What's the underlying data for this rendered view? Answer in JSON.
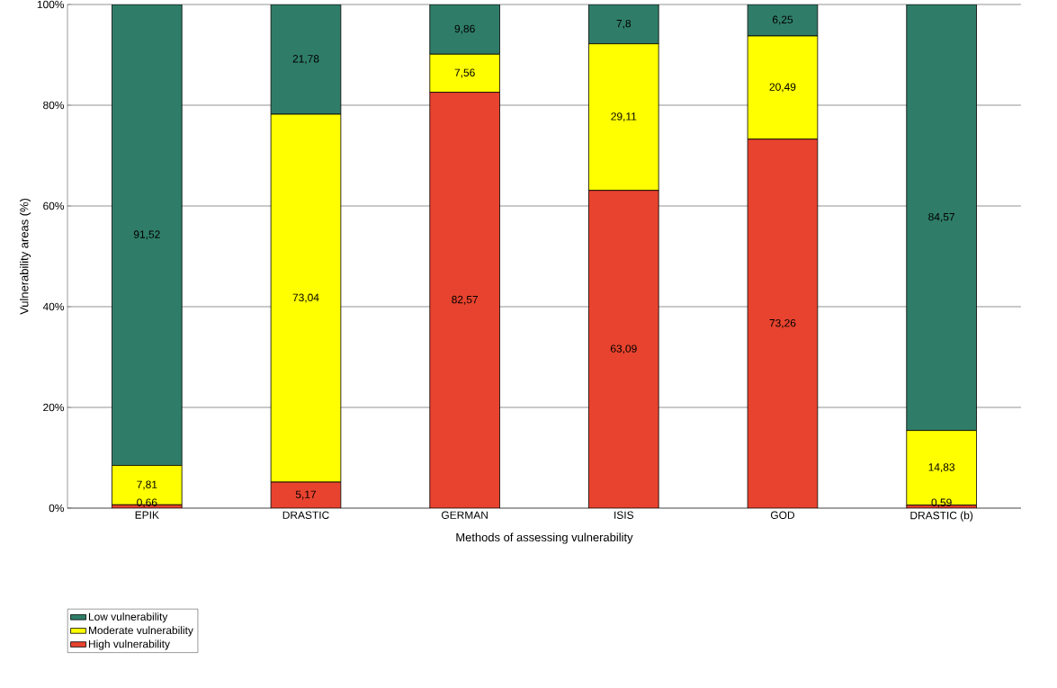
{
  "chart_data": {
    "type": "bar",
    "stacked": true,
    "xlabel": "Methods of assessing vulnerability",
    "ylabel": "Vulnerability areas (%)",
    "categories": [
      "EPIK",
      "DRASTIC",
      "GERMAN",
      "ISIS",
      "GOD",
      "DRASTIC (b)"
    ],
    "series": [
      {
        "name": "High vulnerability",
        "color": "#e8432e",
        "values": [
          0.66,
          5.17,
          82.57,
          63.09,
          73.26,
          0.59
        ],
        "value_labels": [
          "0,66",
          "5,17",
          "82,57",
          "63,09",
          "73,26",
          "0,59"
        ]
      },
      {
        "name": "Moderate vulnerability",
        "color": "#ffff00",
        "values": [
          7.81,
          73.04,
          7.56,
          29.11,
          20.49,
          14.83
        ],
        "value_labels": [
          "7,81",
          "73,04",
          "7,56",
          "29,11",
          "20,49",
          "14,83"
        ]
      },
      {
        "name": "Low vulnerability",
        "color": "#2f7d68",
        "values": [
          91.52,
          21.78,
          9.86,
          7.8,
          6.25,
          84.57
        ],
        "value_labels": [
          "91,52",
          "21,78",
          "9,86",
          "7,8",
          "6,25",
          "84,57"
        ]
      }
    ],
    "ylim": [
      0,
      100
    ],
    "yticks": [
      {
        "value": 0,
        "label": "0%"
      },
      {
        "value": 20,
        "label": "20%"
      },
      {
        "value": 40,
        "label": "40%"
      },
      {
        "value": 60,
        "label": "60%"
      },
      {
        "value": 80,
        "label": "80%"
      },
      {
        "value": 100,
        "label": "100%"
      }
    ],
    "grid": "y",
    "legend": "bottom left"
  }
}
